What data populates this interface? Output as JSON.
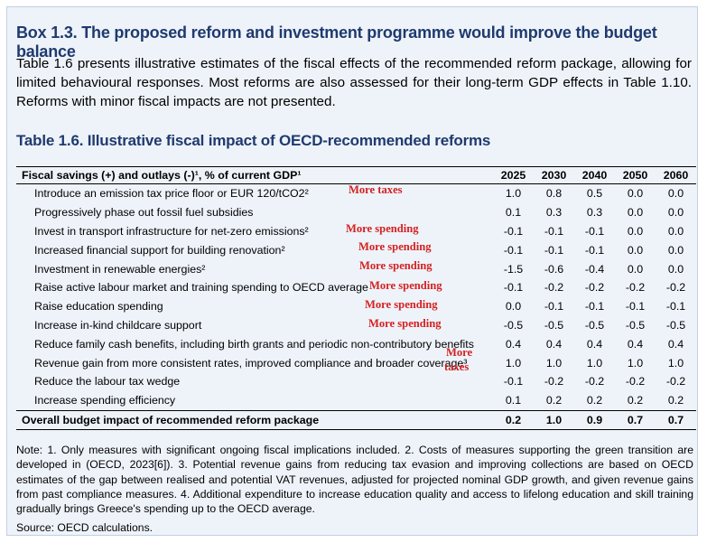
{
  "box_title": "Box 1.3. The proposed reform and investment programme would improve the budget balance",
  "intro": "Table 1.6 presents illustrative estimates of the fiscal effects of the recommended reform package, allowing for limited behavioural responses. Most reforms are also assessed for their long-term GDP effects in Table 1.10. Reforms with minor fiscal impacts are not presented.",
  "table_title": "Table 1.6. Illustrative fiscal impact of OECD-recommended reforms",
  "table": {
    "header_label": "Fiscal savings (+) and outlays (-)¹, % of current GDP¹",
    "years": [
      "2025",
      "2030",
      "2040",
      "2050",
      "2060"
    ],
    "rows": [
      {
        "label": "Introduce an emission tax price floor or EUR 120/tCO2²",
        "values": [
          "1.0",
          "0.8",
          "0.5",
          "0.0",
          "0.0"
        ]
      },
      {
        "label": "Progressively phase out fossil fuel subsidies",
        "values": [
          "0.1",
          "0.3",
          "0.3",
          "0.0",
          "0.0"
        ]
      },
      {
        "label": "Invest in transport infrastructure for net-zero emissions²",
        "values": [
          "-0.1",
          "-0.1",
          "-0.1",
          "0.0",
          "0.0"
        ]
      },
      {
        "label": "Increased financial support for building renovation²",
        "values": [
          "-0.1",
          "-0.1",
          "-0.1",
          "0.0",
          "0.0"
        ]
      },
      {
        "label": "Investment in renewable energies²",
        "values": [
          "-1.5",
          "-0.6",
          "-0.4",
          "0.0",
          "0.0"
        ]
      },
      {
        "label": "Raise active labour market and training spending to OECD average",
        "values": [
          "-0.1",
          "-0.2",
          "-0.2",
          "-0.2",
          "-0.2"
        ]
      },
      {
        "label": "Raise education spending",
        "values": [
          "0.0",
          "-0.1",
          "-0.1",
          "-0.1",
          "-0.1"
        ]
      },
      {
        "label": "Increase in-kind childcare support",
        "values": [
          "-0.5",
          "-0.5",
          "-0.5",
          "-0.5",
          "-0.5"
        ]
      },
      {
        "label": "Reduce family cash benefits, including birth grants and periodic non-contributory benefits",
        "values": [
          "0.4",
          "0.4",
          "0.4",
          "0.4",
          "0.4"
        ]
      },
      {
        "label": "Revenue gain from more consistent rates, improved compliance and broader coverage³",
        "values": [
          "1.0",
          "1.0",
          "1.0",
          "1.0",
          "1.0"
        ]
      },
      {
        "label": "Reduce the labour tax wedge",
        "values": [
          "-0.1",
          "-0.2",
          "-0.2",
          "-0.2",
          "-0.2"
        ]
      },
      {
        "label": "Increase spending efficiency",
        "values": [
          "0.1",
          "0.2",
          "0.2",
          "0.2",
          "0.2"
        ]
      }
    ],
    "total": {
      "label": "Overall budget impact of recommended reform package",
      "values": [
        "0.2",
        "1.0",
        "0.9",
        "0.7",
        "0.7"
      ]
    }
  },
  "annotations": {
    "more_taxes": "More taxes",
    "more_spending": "More spending",
    "more_taxes_split_1": "More",
    "more_taxes_split_2": "taxes"
  },
  "footnote": "Note: 1. Only measures with significant ongoing fiscal implications included. 2. Costs of measures supporting the green transition are developed in (OECD, 2023[6]). 3. Potential revenue gains from reducing tax evasion and improving collections are based on OECD estimates of the gap between realised and potential VAT revenues, adjusted for projected nominal GDP growth, and given revenue gains from past compliance measures. 4. Additional expenditure to increase education quality and access to lifelong education and skill training gradually brings Greece's spending up to the OECD average.",
  "source": "Source: OECD calculations."
}
